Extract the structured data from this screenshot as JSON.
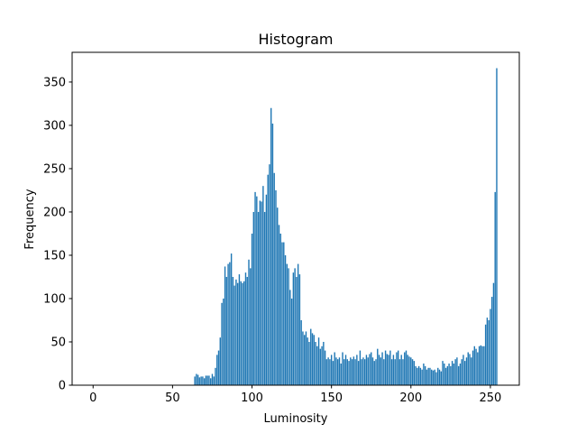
{
  "chart_data": {
    "type": "bar",
    "title": "Histogram",
    "x_label": "Luminosity",
    "y_label": "Frequency",
    "color": "#1f77b4",
    "xlim": [
      -13.2,
      268.2
    ],
    "ylim": [
      0,
      384.3
    ],
    "xticks": [
      0,
      50,
      100,
      150,
      200,
      250
    ],
    "yticks": [
      0,
      50,
      100,
      150,
      200,
      250,
      300,
      350
    ],
    "x": [
      0,
      1,
      2,
      3,
      4,
      5,
      6,
      7,
      8,
      9,
      10,
      11,
      12,
      13,
      14,
      15,
      16,
      17,
      18,
      19,
      20,
      21,
      22,
      23,
      24,
      25,
      26,
      27,
      28,
      29,
      30,
      31,
      32,
      33,
      34,
      35,
      36,
      37,
      38,
      39,
      40,
      41,
      42,
      43,
      44,
      45,
      46,
      47,
      48,
      49,
      50,
      51,
      52,
      53,
      54,
      55,
      56,
      57,
      58,
      59,
      60,
      61,
      62,
      63,
      64,
      65,
      66,
      67,
      68,
      69,
      70,
      71,
      72,
      73,
      74,
      75,
      76,
      77,
      78,
      79,
      80,
      81,
      82,
      83,
      84,
      85,
      86,
      87,
      88,
      89,
      90,
      91,
      92,
      93,
      94,
      95,
      96,
      97,
      98,
      99,
      100,
      101,
      102,
      103,
      104,
      105,
      106,
      107,
      108,
      109,
      110,
      111,
      112,
      113,
      114,
      115,
      116,
      117,
      118,
      119,
      120,
      121,
      122,
      123,
      124,
      125,
      126,
      127,
      128,
      129,
      130,
      131,
      132,
      133,
      134,
      135,
      136,
      137,
      138,
      139,
      140,
      141,
      142,
      143,
      144,
      145,
      146,
      147,
      148,
      149,
      150,
      151,
      152,
      153,
      154,
      155,
      156,
      157,
      158,
      159,
      160,
      161,
      162,
      163,
      164,
      165,
      166,
      167,
      168,
      169,
      170,
      171,
      172,
      173,
      174,
      175,
      176,
      177,
      178,
      179,
      180,
      181,
      182,
      183,
      184,
      185,
      186,
      187,
      188,
      189,
      190,
      191,
      192,
      193,
      194,
      195,
      196,
      197,
      198,
      199,
      200,
      201,
      202,
      203,
      204,
      205,
      206,
      207,
      208,
      209,
      210,
      211,
      212,
      213,
      214,
      215,
      216,
      217,
      218,
      219,
      220,
      221,
      222,
      223,
      224,
      225,
      226,
      227,
      228,
      229,
      230,
      231,
      232,
      233,
      234,
      235,
      236,
      237,
      238,
      239,
      240,
      241,
      242,
      243,
      244,
      245,
      246,
      247,
      248,
      249,
      250,
      251,
      252,
      253,
      254,
      255
    ],
    "values": [
      0,
      0,
      0,
      0,
      0,
      0,
      0,
      0,
      0,
      0,
      0,
      0,
      0,
      0,
      0,
      0,
      0,
      0,
      0,
      0,
      0,
      0,
      0,
      0,
      0,
      0,
      0,
      0,
      0,
      0,
      0,
      0,
      0,
      0,
      0,
      0,
      0,
      0,
      0,
      0,
      0,
      0,
      0,
      0,
      0,
      0,
      0,
      0,
      0,
      0,
      0,
      0,
      0,
      0,
      0,
      0,
      0,
      0,
      0,
      0,
      0,
      0,
      0,
      0,
      10,
      13,
      12,
      9,
      10,
      10,
      8,
      11,
      11,
      11,
      8,
      13,
      10,
      20,
      35,
      40,
      55,
      95,
      100,
      137,
      125,
      140,
      142,
      152,
      125,
      115,
      122,
      118,
      128,
      120,
      118,
      120,
      130,
      125,
      145,
      135,
      175,
      200,
      223,
      218,
      200,
      213,
      212,
      230,
      200,
      220,
      243,
      255,
      320,
      302,
      245,
      225,
      205,
      185,
      175,
      165,
      165,
      150,
      140,
      135,
      110,
      100,
      130,
      135,
      125,
      140,
      128,
      75,
      62,
      58,
      62,
      55,
      50,
      65,
      60,
      58,
      50,
      45,
      55,
      42,
      45,
      50,
      40,
      30,
      32,
      30,
      35,
      28,
      38,
      32,
      30,
      32,
      25,
      38,
      30,
      35,
      30,
      28,
      32,
      30,
      33,
      30,
      35,
      28,
      40,
      30,
      32,
      30,
      35,
      32,
      36,
      38,
      32,
      28,
      30,
      42,
      35,
      32,
      38,
      30,
      40,
      36,
      35,
      40,
      30,
      35,
      30,
      38,
      40,
      30,
      35,
      30,
      38,
      40,
      35,
      33,
      32,
      30,
      28,
      22,
      20,
      22,
      20,
      18,
      25,
      22,
      18,
      20,
      20,
      18,
      17,
      18,
      15,
      20,
      18,
      16,
      28,
      25,
      20,
      22,
      25,
      22,
      28,
      25,
      30,
      32,
      22,
      25,
      30,
      35,
      28,
      32,
      38,
      36,
      32,
      40,
      45,
      42,
      38,
      45,
      46,
      45,
      45,
      70,
      78,
      75,
      88,
      102,
      118,
      223,
      366,
      0
    ]
  }
}
